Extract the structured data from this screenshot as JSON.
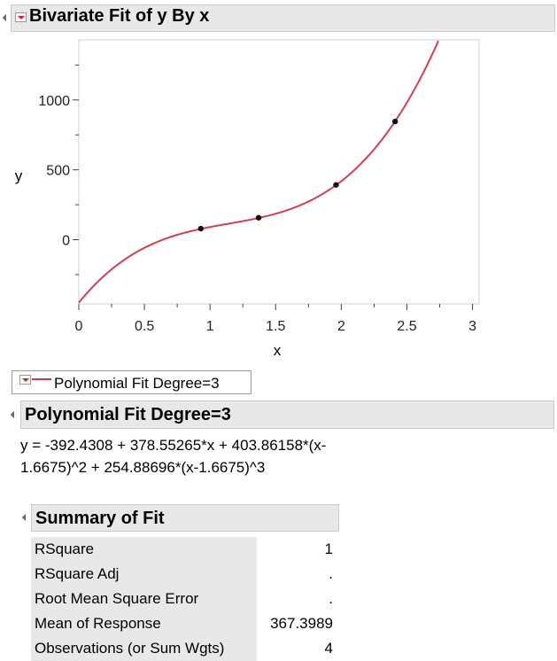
{
  "report": {
    "title": "Bivariate Fit of y By x"
  },
  "chart_data": {
    "type": "scatter",
    "xlabel": "x",
    "ylabel": "y",
    "xlim": [
      0,
      3.05
    ],
    "ylim": [
      -460,
      1430
    ],
    "x_ticks": [
      "0",
      "0.5",
      "1",
      "1.5",
      "2",
      "2.5",
      "3"
    ],
    "x_tick_values": [
      0,
      0.5,
      1,
      1.5,
      2,
      2.5,
      3
    ],
    "y_ticks": [
      "0",
      "500",
      "1000"
    ],
    "y_tick_values": [
      0,
      500,
      1000
    ],
    "points": [
      {
        "x": 0.93,
        "y": 79
      },
      {
        "x": 1.37,
        "y": 157
      },
      {
        "x": 1.96,
        "y": 392
      },
      {
        "x": 2.41,
        "y": 846
      }
    ],
    "fit": {
      "coefficients": [
        -392.4308,
        378.55265,
        403.86158,
        254.88696
      ],
      "center": 1.6675,
      "color": "#d0414f"
    },
    "point_color": "#111111"
  },
  "legend": {
    "label": "Polynomial Fit Degree=3",
    "line_color": "#c93a4a"
  },
  "poly_section": {
    "title": "Polynomial Fit Degree=3",
    "equation": "y = -392.4308 + 378.55265*x + 403.86158*(x-1.6675)^2 + 254.88696*(x-1.6675)^3"
  },
  "summary_of_fit": {
    "title": "Summary of Fit",
    "rows": [
      {
        "label": "RSquare",
        "value": "1"
      },
      {
        "label": "RSquare Adj",
        "value": "."
      },
      {
        "label": "Root Mean Square Error",
        "value": "."
      },
      {
        "label": "Mean of Response",
        "value": "367.3989"
      },
      {
        "label": "Observations (or Sum Wgts)",
        "value": "4"
      }
    ]
  }
}
